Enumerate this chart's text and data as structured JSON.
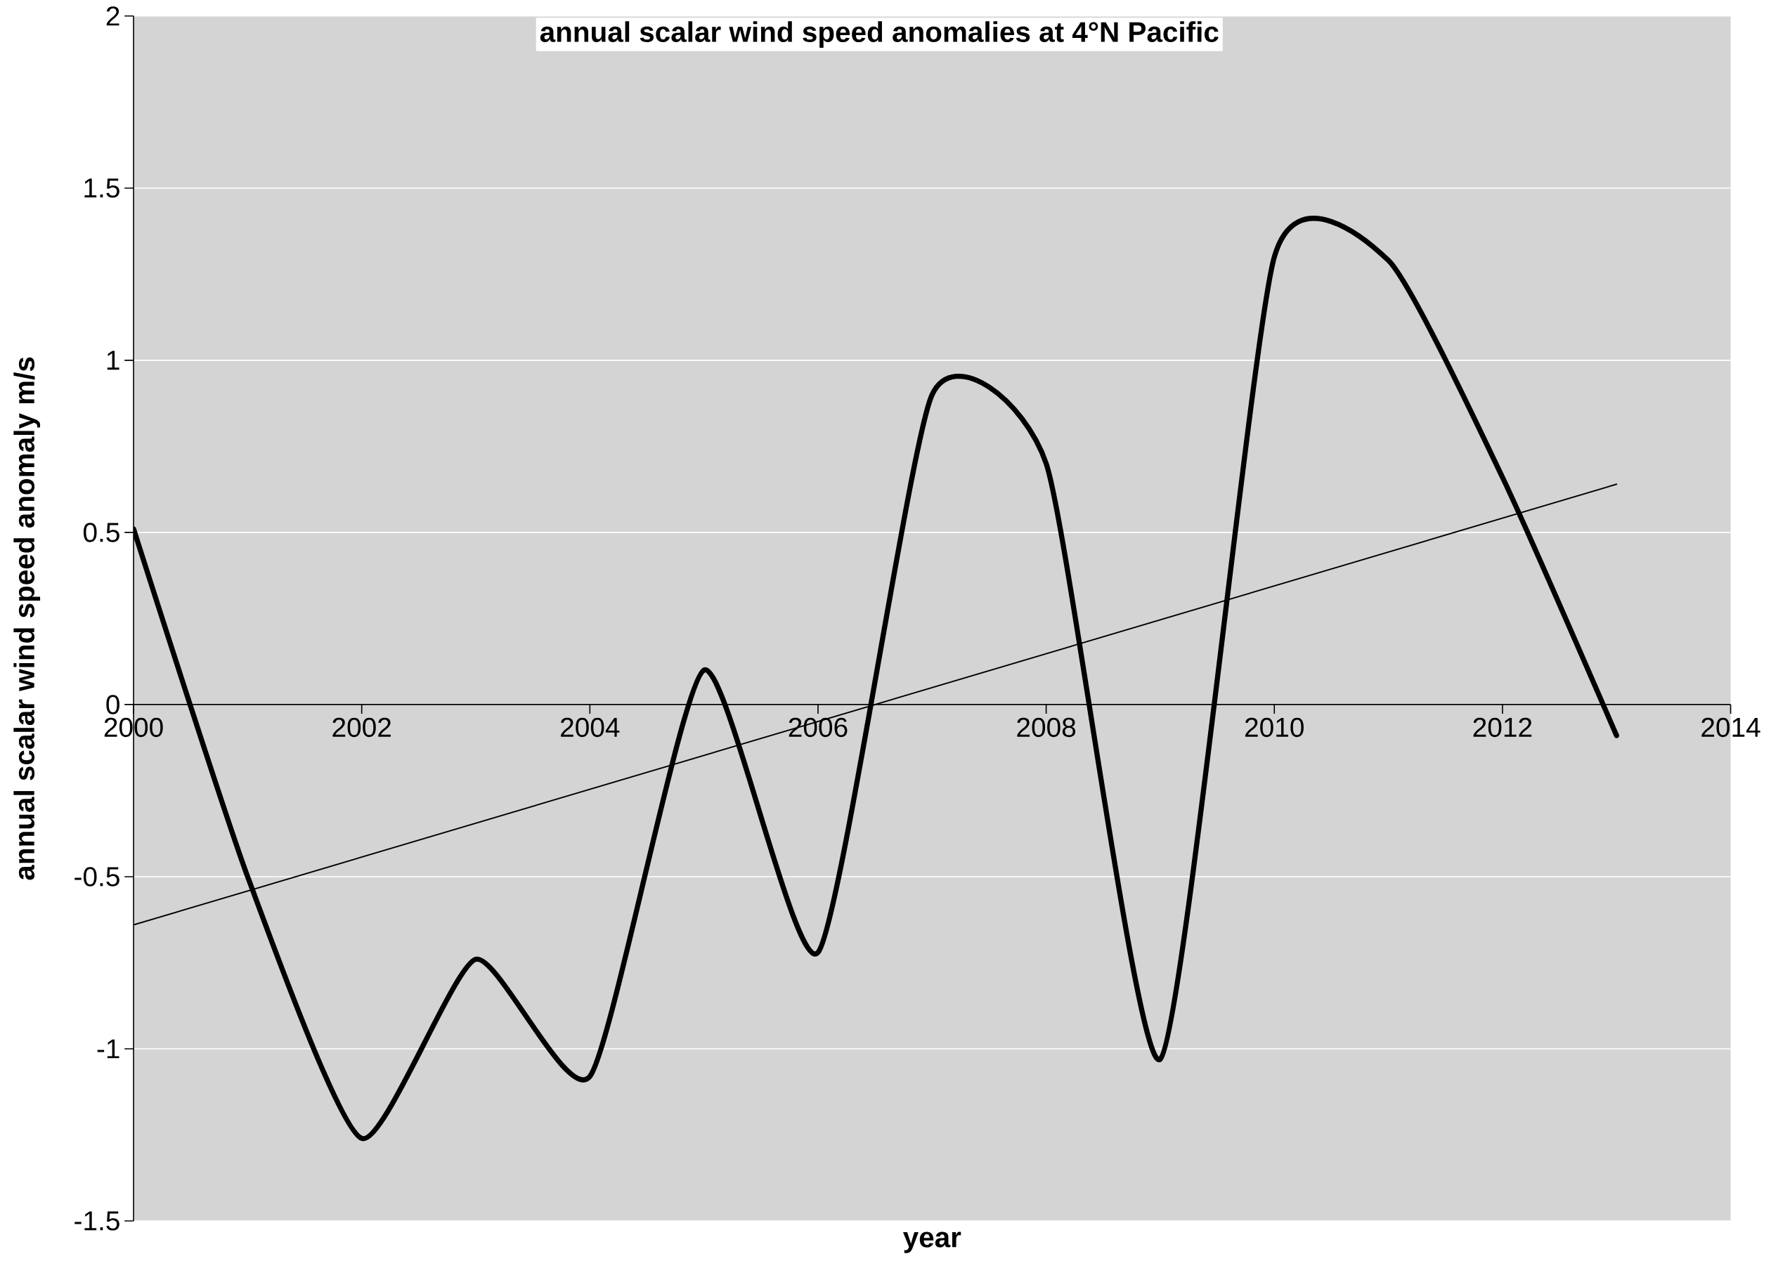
{
  "chart_data": {
    "type": "line",
    "title": "annual scalar wind speed anomalies at 4°N Pacific",
    "xlabel": "year",
    "ylabel": "annual scalar wind speed anomaly m/s",
    "x": [
      2000,
      2001,
      2002,
      2003,
      2004,
      2005,
      2006,
      2007,
      2008,
      2009,
      2010,
      2011,
      2012,
      2013
    ],
    "series": [
      {
        "color": "#000000",
        "values": [
          0.51,
          -0.5,
          -1.26,
          -0.74,
          -1.08,
          0.1,
          -0.72,
          0.9,
          0.7,
          -1.03,
          1.3,
          1.29,
          0.66,
          -0.09
        ]
      },
      {
        "type": "line",
        "x": [
          2000,
          2013
        ],
        "color": "#000000",
        "values": [
          -0.64,
          0.64
        ]
      }
    ],
    "xlim": [
      2000,
      2014
    ],
    "ylim": [
      -1.5,
      2
    ],
    "xticks": [
      2000,
      2002,
      2004,
      2006,
      2008,
      2010,
      2012,
      2014
    ],
    "yticks": [
      -1.5,
      -1,
      -0.5,
      0,
      0.5,
      1,
      1.5,
      2
    ],
    "grid": "y",
    "marker": "none",
    "line_style": "solid"
  }
}
